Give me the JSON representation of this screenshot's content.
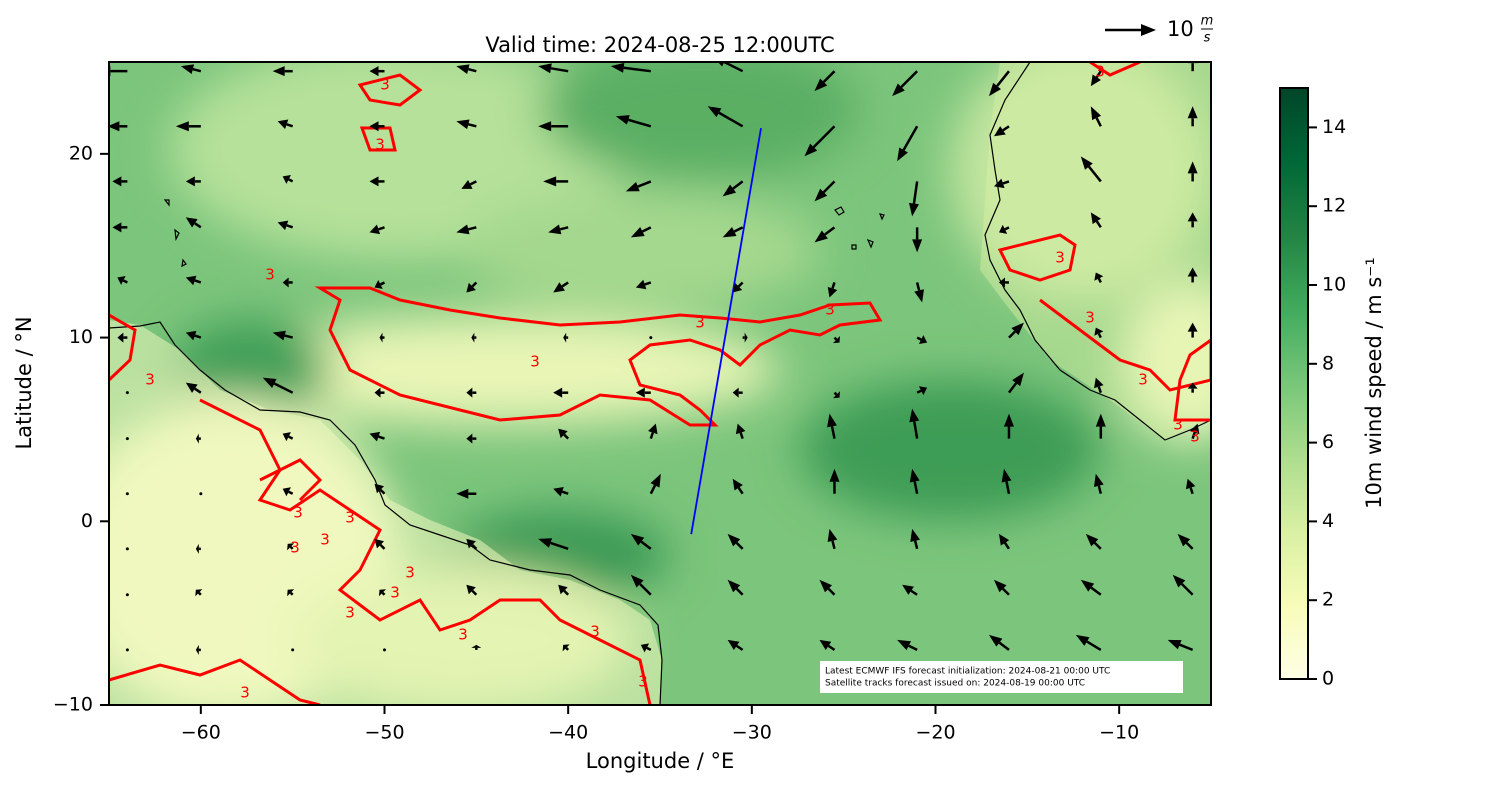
{
  "chart_data": {
    "type": "quiver",
    "title": "Valid time: 2024-08-25 12:00UTC",
    "x_label": "Longitude / °E",
    "y_label": "Latitude / °N",
    "xlim": [
      -65,
      -5
    ],
    "ylim": [
      -10,
      25
    ],
    "xticks": [
      {
        "value": -60,
        "label": "−60"
      },
      {
        "value": -50,
        "label": "−50"
      },
      {
        "value": -40,
        "label": "−40"
      },
      {
        "value": -30,
        "label": "−30"
      },
      {
        "value": -20,
        "label": "−20"
      },
      {
        "value": -10,
        "label": "−10"
      }
    ],
    "yticks": [
      {
        "value": -10,
        "label": "−10"
      },
      0,
      10,
      20
    ],
    "colorbar": {
      "label": "10m wind speed / m s⁻¹",
      "lim": [
        0,
        15
      ],
      "ticks": [
        0,
        2,
        4,
        6,
        8,
        10,
        12,
        14
      ],
      "colors": [
        "#ffffe5",
        "#f7fcb9",
        "#d9f0a3",
        "#addd8e",
        "#78c679",
        "#41ab5d",
        "#238443",
        "#006837",
        "#004529"
      ]
    },
    "contour_label": "3",
    "contour_color": "#ff0000",
    "quiver_key": {
      "value": 10,
      "unit_num": "m",
      "unit_den": "s"
    },
    "track": {
      "lon": [
        -33.3,
        -29.5
      ],
      "lat": [
        -0.7,
        21.4
      ],
      "color": "#0000ff"
    },
    "annotation": [
      "Latest ECMWF IFS forecast initialization: 2024-08-21 00:00 UTC",
      "Satellite tracks forecast issued on: 2024-08-19 00:00 UTC"
    ],
    "wind": {
      "lons": [
        -64,
        -60,
        -55,
        -50,
        -45,
        -40,
        -35.5,
        -30.5,
        -25.5,
        -21,
        -16,
        -11,
        -6
      ],
      "lats": [
        24.5,
        21.5,
        18.5,
        16,
        13,
        10,
        7,
        4.5,
        1.5,
        -1.5,
        -4,
        -7
      ],
      "u": [
        [
          -6,
          -4,
          -4,
          -3,
          -4,
          -6,
          -8,
          -6,
          -4,
          -5,
          -4,
          -2,
          0
        ],
        [
          -4,
          -5,
          -3,
          -3,
          -4,
          -6,
          -7,
          -7,
          -6,
          -4,
          -3,
          -2,
          0
        ],
        [
          -3,
          -3,
          -2,
          -3,
          -3,
          -5,
          -5,
          -4,
          -4,
          -1,
          -3,
          -4,
          0
        ],
        [
          -3,
          -3,
          -3,
          -3,
          -4,
          -4,
          -4,
          -4,
          -4,
          0,
          -2,
          -2,
          0
        ],
        [
          -2,
          -3,
          -2,
          -2,
          -2,
          -3,
          -3,
          -2,
          -1,
          1,
          -2,
          -1,
          0
        ],
        [
          -2,
          -3,
          -4,
          -1,
          -1,
          -1,
          0,
          1,
          1,
          2,
          3,
          -1,
          0
        ],
        [
          0,
          -3,
          -6,
          -2,
          -2,
          -3,
          -3,
          -2,
          1,
          2,
          3,
          -1,
          0
        ],
        [
          0,
          -1,
          -2,
          -3,
          -2,
          -2,
          1,
          -1,
          -1,
          -1,
          0,
          0,
          1
        ],
        [
          0,
          0,
          -2,
          -2,
          -4,
          -3,
          2,
          -2,
          0,
          -1,
          -1,
          -1,
          -1
        ],
        [
          0,
          -1,
          -1,
          -2,
          -2,
          -6,
          -4,
          -3,
          -1,
          -1,
          -2,
          -3,
          -3
        ],
        [
          0,
          -1,
          -1,
          -1,
          -2,
          -2,
          -4,
          -3,
          -3,
          -3,
          -3,
          -4,
          -4
        ],
        [
          0,
          -1,
          0,
          0,
          0,
          -1,
          -2,
          -3,
          -3,
          -4,
          -4,
          -5,
          -5
        ]
      ],
      "v": [
        [
          0,
          1,
          0,
          0,
          1,
          1,
          1,
          3,
          -4,
          -5,
          -5,
          -3,
          4
        ],
        [
          0,
          0,
          1,
          0,
          1,
          0,
          2,
          4,
          -6,
          -7,
          -2,
          4,
          4
        ],
        [
          0,
          0,
          1,
          0,
          -1.5,
          0,
          -2,
          -3,
          -4,
          -7,
          -1,
          5,
          4
        ],
        [
          0,
          2,
          1,
          -1,
          -1,
          -1,
          -2,
          -2,
          -3,
          -5,
          -1,
          3,
          3
        ],
        [
          1,
          1,
          0,
          -1,
          -2,
          -2,
          -1,
          -2,
          -3,
          -4,
          0,
          2,
          3
        ],
        [
          0,
          1,
          1,
          0,
          0,
          0,
          0,
          0,
          -1,
          -1,
          3,
          2,
          3
        ],
        [
          0,
          2,
          3,
          0,
          0,
          0,
          0,
          0,
          -1,
          1,
          4,
          3,
          2
        ],
        [
          0,
          0,
          1,
          1,
          0,
          2,
          3,
          3,
          5,
          6,
          5,
          5,
          3
        ],
        [
          0,
          0,
          1,
          2,
          0,
          1,
          4,
          3,
          5,
          5,
          5,
          4,
          3
        ],
        [
          0,
          0,
          1,
          2,
          2,
          2,
          3,
          3,
          4,
          4,
          3,
          3,
          3
        ],
        [
          0,
          1,
          1,
          1,
          2,
          2,
          4,
          3,
          3,
          2,
          3,
          3,
          4
        ],
        [
          0,
          0,
          0,
          0,
          1,
          1,
          1,
          2,
          2,
          2,
          3,
          3,
          2
        ]
      ]
    }
  }
}
